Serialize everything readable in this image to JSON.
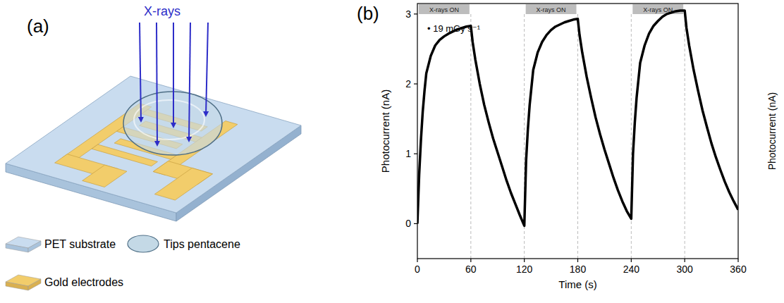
{
  "diagram": {
    "panel_label": "(a)",
    "beam_label": "X-rays",
    "key_items": [
      {
        "label": "PET substrate"
      },
      {
        "label": "Tips pentacene"
      },
      {
        "label": "Gold electrodes"
      }
    ]
  },
  "chart_data": {
    "type": "line",
    "panel_label": "(b)",
    "x_label": "Time (s)",
    "y_label": "Photocurrent (nA)",
    "annotation": "• 19 mGy s⁻¹",
    "xray_on": {
      "label": "X-rays ON",
      "intervals": [
        [
          0,
          60
        ],
        [
          120,
          180
        ],
        [
          240,
          300
        ]
      ]
    },
    "next_panel_y_label": "Photocurrent (nA)",
    "color": "#000000",
    "line_style": "solid",
    "grid": false,
    "xlim": [
      0,
      360
    ],
    "xticks": [
      0,
      60,
      120,
      180,
      240,
      300,
      360
    ],
    "ylim": [
      -0.5,
      3.15
    ],
    "yticks": [
      0,
      1,
      2,
      3
    ],
    "x": [
      0,
      2,
      4,
      6,
      8,
      10,
      15,
      20,
      25,
      30,
      35,
      40,
      45,
      50,
      55,
      60,
      62,
      65,
      70,
      75,
      80,
      85,
      90,
      95,
      100,
      105,
      110,
      115,
      120,
      122,
      124,
      126,
      128,
      130,
      135,
      140,
      145,
      150,
      155,
      160,
      165,
      170,
      175,
      180,
      182,
      185,
      190,
      195,
      200,
      205,
      210,
      215,
      220,
      225,
      230,
      235,
      240,
      242,
      244,
      246,
      248,
      250,
      255,
      260,
      265,
      270,
      275,
      280,
      285,
      290,
      295,
      300,
      302,
      305,
      310,
      315,
      320,
      325,
      330,
      335,
      340,
      345,
      350,
      355,
      360
    ],
    "values": [
      0,
      0.7,
      1.2,
      1.6,
      1.9,
      2.15,
      2.4,
      2.55,
      2.63,
      2.68,
      2.72,
      2.75,
      2.78,
      2.8,
      2.82,
      2.83,
      2.6,
      2.35,
      2.0,
      1.7,
      1.45,
      1.22,
      1.02,
      0.82,
      0.62,
      0.44,
      0.28,
      0.12,
      -0.03,
      0.9,
      1.35,
      1.7,
      1.95,
      2.2,
      2.45,
      2.6,
      2.7,
      2.77,
      2.82,
      2.85,
      2.88,
      2.9,
      2.92,
      2.93,
      2.7,
      2.45,
      2.1,
      1.8,
      1.52,
      1.28,
      1.06,
      0.86,
      0.66,
      0.48,
      0.32,
      0.18,
      0.07,
      1.0,
      1.45,
      1.8,
      2.05,
      2.3,
      2.55,
      2.72,
      2.83,
      2.9,
      2.96,
      3.0,
      3.02,
      3.04,
      3.05,
      3.05,
      2.8,
      2.55,
      2.2,
      1.9,
      1.62,
      1.38,
      1.15,
      0.95,
      0.77,
      0.6,
      0.45,
      0.32,
      0.2
    ]
  }
}
